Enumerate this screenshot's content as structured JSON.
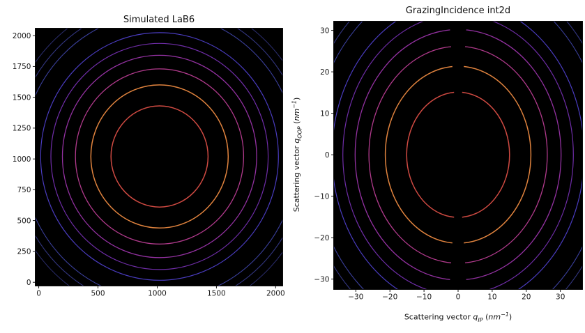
{
  "figure": {
    "background": "#ffffff",
    "text_color": "#111111"
  },
  "chart_data": [
    {
      "id": "left",
      "type": "contour",
      "title": "Simulated LaB6",
      "background": "#000000",
      "xlim": [
        -30,
        2060
      ],
      "ylim": [
        -30,
        2060
      ],
      "xtick_values": [
        0,
        500,
        1000,
        1500,
        2000
      ],
      "xtick_labels": [
        "0",
        "500",
        "1000",
        "1500",
        "2000"
      ],
      "ytick_values": [
        0,
        250,
        500,
        750,
        1000,
        1250,
        1500,
        1750,
        2000
      ],
      "ytick_labels": [
        "0",
        "250",
        "500",
        "750",
        "1000",
        "1250",
        "1500",
        "1750",
        "2000"
      ],
      "center": [
        1020,
        1020
      ],
      "rings": [
        {
          "radius": 410,
          "color": "#cf4a42",
          "width": 1.5
        },
        {
          "radius": 580,
          "color": "#e0833e",
          "width": 1.5
        },
        {
          "radius": 710,
          "color": "#b13a8c",
          "width": 1.3
        },
        {
          "radius": 820,
          "color": "#9331a1",
          "width": 1.3
        },
        {
          "radius": 917,
          "color": "#6f2da8",
          "width": 1.2
        },
        {
          "radius": 1004,
          "color": "#4a3cc0",
          "width": 1.2
        },
        {
          "radius": 1160,
          "color": "#3a3f9b",
          "width": 1.1
        },
        {
          "radius": 1230,
          "color": "#32357f",
          "width": 1.1
        },
        {
          "radius": 1297,
          "color": "#2b2d6e",
          "width": 1.0
        }
      ]
    },
    {
      "id": "right",
      "type": "contour",
      "title": "GrazingIncidence int2d",
      "background": "#000000",
      "xlabel": {
        "prefix": "Scattering vector ",
        "symbol": "q",
        "subscript": "IP",
        "unit_prefix": " (",
        "unit": "nm",
        "exponent": "−1",
        "unit_suffix": ")"
      },
      "ylabel": {
        "prefix": "Scattering vector ",
        "symbol": "q",
        "subscript": "OOP",
        "unit_prefix": " (",
        "unit": "nm",
        "exponent": "−1",
        "unit_suffix": ")"
      },
      "xlim": [
        -36.5,
        36.5
      ],
      "ylim": [
        -32.5,
        32.2
      ],
      "xtick_values": [
        -30,
        -20,
        -10,
        0,
        10,
        20,
        30
      ],
      "xtick_labels": [
        "−30",
        "−20",
        "−10",
        "0",
        "10",
        "20",
        "30"
      ],
      "ytick_values": [
        -30,
        -20,
        -10,
        0,
        10,
        20,
        30
      ],
      "ytick_labels": [
        "−30",
        "−20",
        "−10",
        "0",
        "10",
        "20",
        "30"
      ],
      "center": [
        0,
        0
      ],
      "rings": [
        {
          "radius": 15.1,
          "color": "#cf4a42",
          "width": 1.5
        },
        {
          "radius": 21.35,
          "color": "#e0833e",
          "width": 1.5
        },
        {
          "radius": 26.15,
          "color": "#b13a8c",
          "width": 1.3
        },
        {
          "radius": 30.2,
          "color": "#9331a1",
          "width": 1.3
        },
        {
          "radius": 33.8,
          "color": "#6f2da8",
          "width": 1.2
        },
        {
          "radius": 37.0,
          "color": "#4a3cc0",
          "width": 1.2
        },
        {
          "radius": 42.7,
          "color": "#3a3f9b",
          "width": 1.1
        },
        {
          "radius": 45.3,
          "color": "#32357f",
          "width": 1.1
        }
      ],
      "missing_wedge": {
        "half_angle_deg": 4.5,
        "directions": [
          "up",
          "down"
        ]
      }
    }
  ]
}
